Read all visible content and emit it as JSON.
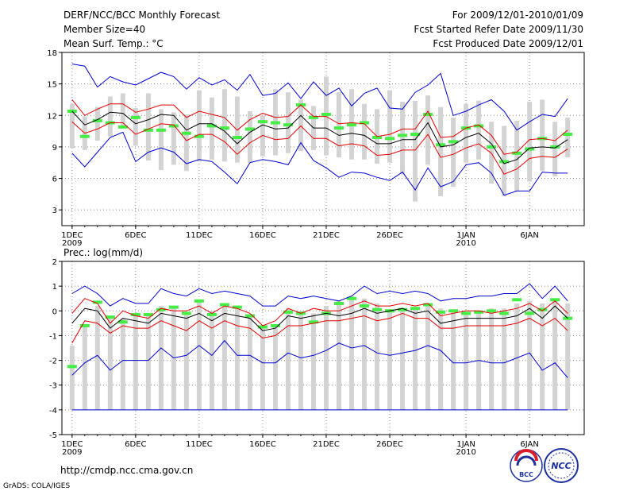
{
  "header": {
    "title": "DERF/NCC/BCC Monthly Forecast",
    "member_size": "Member Size=40",
    "variable": "Mean Surf. Temp.: °C",
    "period": "For 2009/12/01-2010/01/09",
    "started": "Fcst Started Refer Date 2009/11/30",
    "produced": "Fcst Produced Date 2009/12/01"
  },
  "footer": {
    "url": "http://cmdp.ncc.cma.gov.cn",
    "credit": "GrADS: COLA/IGES",
    "logo_bcc": "BCC",
    "logo_ncc": "NCC"
  },
  "colors": {
    "envelope": "#0000cc",
    "spread": "#e00000",
    "mean": "#000000",
    "box": "#d3d3d3",
    "observed": "#44ee44",
    "grid": "#888888"
  },
  "chart_data": [
    {
      "type": "line",
      "title": "Mean Surf. Temp.: °C",
      "ylim": [
        1.5,
        18
      ],
      "yticks": [
        3,
        6,
        9,
        12,
        15,
        18
      ],
      "x_tick_labels": [
        {
          "day": 1,
          "label": "1DEC",
          "sub": "2009"
        },
        {
          "day": 6,
          "label": "6DEC",
          "sub": ""
        },
        {
          "day": 11,
          "label": "11DEC",
          "sub": ""
        },
        {
          "day": 16,
          "label": "16DEC",
          "sub": ""
        },
        {
          "day": 21,
          "label": "21DEC",
          "sub": ""
        },
        {
          "day": 26,
          "label": "26DEC",
          "sub": ""
        },
        {
          "day": 32,
          "label": "1JAN",
          "sub": "2010"
        },
        {
          "day": 37,
          "label": "6JAN",
          "sub": ""
        }
      ],
      "days": [
        1,
        2,
        3,
        4,
        5,
        6,
        7,
        8,
        9,
        10,
        11,
        12,
        13,
        14,
        15,
        16,
        17,
        18,
        19,
        20,
        21,
        22,
        23,
        24,
        25,
        26,
        27,
        28,
        29,
        30,
        31,
        32,
        33,
        34,
        35,
        36,
        37,
        38,
        39,
        40
      ],
      "series": [
        {
          "name": "max",
          "values": [
            16.9,
            16.7,
            14.7,
            15.7,
            15.2,
            14.9,
            15.5,
            16.1,
            15.7,
            14.5,
            15.6,
            14.9,
            15.4,
            14.4,
            15.9,
            13.9,
            14.1,
            15.1,
            13.6,
            15.2,
            13.9,
            14.6,
            12.9,
            14.1,
            14.6,
            12.7,
            12.6,
            14.2,
            14.9,
            16.0,
            12.0,
            12.4,
            13.0,
            13.5,
            12.4,
            10.6,
            11.4,
            12.1,
            11.9,
            13.6
          ]
        },
        {
          "name": "upper",
          "values": [
            13.5,
            12.0,
            12.6,
            13.1,
            13.1,
            12.3,
            12.6,
            13.0,
            13.0,
            11.8,
            12.4,
            12.1,
            11.8,
            10.6,
            11.6,
            12.2,
            11.8,
            11.9,
            13.0,
            11.9,
            11.9,
            11.2,
            11.3,
            11.2,
            10.0,
            10.2,
            10.7,
            10.7,
            12.4,
            9.9,
            10.0,
            10.8,
            11.1,
            10.1,
            8.3,
            8.5,
            9.7,
            9.8,
            9.6,
            10.6
          ]
        },
        {
          "name": "mean",
          "values": [
            12.4,
            11.1,
            11.6,
            12.3,
            12.2,
            11.2,
            11.6,
            12.1,
            12.0,
            10.6,
            11.2,
            11.2,
            10.5,
            9.3,
            10.4,
            11.1,
            10.7,
            10.8,
            12.0,
            10.8,
            10.8,
            10.1,
            10.3,
            10.1,
            9.3,
            9.3,
            9.7,
            9.7,
            11.3,
            9.0,
            9.2,
            9.9,
            10.3,
            9.3,
            7.4,
            7.8,
            8.9,
            9.0,
            8.9,
            9.7
          ]
        },
        {
          "name": "lower",
          "values": [
            11.4,
            10.3,
            10.7,
            11.3,
            11.3,
            10.2,
            10.7,
            11.2,
            11.1,
            9.6,
            10.2,
            10.2,
            9.5,
            8.3,
            9.4,
            10.1,
            9.7,
            9.8,
            11.0,
            9.8,
            9.8,
            9.1,
            9.3,
            9.1,
            8.2,
            8.3,
            8.7,
            8.7,
            10.2,
            8.0,
            8.3,
            8.9,
            9.3,
            8.4,
            6.4,
            6.9,
            7.9,
            8.1,
            8.0,
            8.8
          ]
        },
        {
          "name": "min",
          "values": [
            8.4,
            7.1,
            8.5,
            9.9,
            10.4,
            7.6,
            8.5,
            8.9,
            8.5,
            7.4,
            7.8,
            7.6,
            6.6,
            5.5,
            7.5,
            7.8,
            7.6,
            7.3,
            9.4,
            7.7,
            7.0,
            6.1,
            6.6,
            6.5,
            6.1,
            5.8,
            6.6,
            4.9,
            7.0,
            5.2,
            5.7,
            7.3,
            7.5,
            6.5,
            4.4,
            4.8,
            4.8,
            6.6,
            6.5,
            6.5
          ]
        }
      ],
      "boxes": {
        "low": [
          8.9,
          8.7,
          9.6,
          10.0,
          10.9,
          9.1,
          7.7,
          6.8,
          7.3,
          6.7,
          7.6,
          7.8,
          7.6,
          7.5,
          7.5,
          8.1,
          8.2,
          8.4,
          8.6,
          8.7,
          8.2,
          8.0,
          7.8,
          7.8,
          7.4,
          7.5,
          6.4,
          3.8,
          7.3,
          4.3,
          5.2,
          7.5,
          7.8,
          5.5,
          4.3,
          4.8,
          5.7,
          6.7,
          6.2,
          8.0
        ],
        "high": [
          13.1,
          11.9,
          12.8,
          13.8,
          14.1,
          12.7,
          14.1,
          12.6,
          12.3,
          12.1,
          14.4,
          13.7,
          14.5,
          13.8,
          12.4,
          12.0,
          14.5,
          14.2,
          13.5,
          12.9,
          15.7,
          14.2,
          14.5,
          13.1,
          12.6,
          14.4,
          13.3,
          13.4,
          13.9,
          12.8,
          11.8,
          13.1,
          13.4,
          11.4,
          11.0,
          11.5,
          13.3,
          13.5,
          11.4,
          11.8
        ]
      },
      "observed": [
        12.4,
        10.0,
        11.5,
        11.3,
        10.9,
        11.8,
        10.6,
        10.6,
        11.0,
        10.3,
        10.0,
        11.0,
        10.8,
        9.9,
        10.7,
        11.4,
        11.3,
        11.1,
        13.0,
        11.8,
        12.1,
        10.8,
        11.1,
        11.3,
        9.9,
        9.8,
        10.1,
        10.2,
        12.1,
        9.2,
        9.5,
        10.8,
        11.0,
        9.0,
        7.6,
        8.4,
        8.8,
        9.8,
        9.0,
        10.2
      ]
    },
    {
      "type": "line",
      "title": "Prec.: log(mm/d)",
      "ylim": [
        -5,
        2
      ],
      "yticks": [
        -5,
        -4,
        -3,
        -2,
        -1,
        0,
        1,
        2
      ],
      "x_tick_labels": [
        {
          "day": 1,
          "label": "1DEC",
          "sub": "2009"
        },
        {
          "day": 6,
          "label": "6DEC",
          "sub": ""
        },
        {
          "day": 11,
          "label": "11DEC",
          "sub": ""
        },
        {
          "day": 16,
          "label": "16DEC",
          "sub": ""
        },
        {
          "day": 21,
          "label": "21DEC",
          "sub": ""
        },
        {
          "day": 26,
          "label": "26DEC",
          "sub": ""
        },
        {
          "day": 32,
          "label": "1JAN",
          "sub": "2010"
        },
        {
          "day": 37,
          "label": "6JAN",
          "sub": ""
        }
      ],
      "days": [
        1,
        2,
        3,
        4,
        5,
        6,
        7,
        8,
        9,
        10,
        11,
        12,
        13,
        14,
        15,
        16,
        17,
        18,
        19,
        20,
        21,
        22,
        23,
        24,
        25,
        26,
        27,
        28,
        29,
        30,
        31,
        32,
        33,
        34,
        35,
        36,
        37,
        38,
        39,
        40
      ],
      "series": [
        {
          "name": "max",
          "values": [
            0.7,
            1.0,
            0.7,
            0.2,
            0.5,
            0.3,
            0.3,
            0.9,
            0.7,
            0.6,
            0.9,
            0.7,
            0.8,
            0.7,
            0.6,
            0.2,
            0.2,
            0.6,
            0.5,
            0.6,
            0.5,
            0.4,
            0.6,
            1.0,
            0.7,
            0.8,
            0.7,
            0.8,
            0.7,
            0.4,
            0.5,
            0.5,
            0.6,
            0.6,
            0.7,
            0.7,
            1.1,
            0.5,
            1.0,
            0.4
          ]
        },
        {
          "name": "upper",
          "values": [
            -0.1,
            0.5,
            0.3,
            -0.5,
            0.0,
            -0.2,
            -0.3,
            0.1,
            0.0,
            0.0,
            0.2,
            -0.1,
            0.2,
            0.1,
            -0.1,
            -0.6,
            -0.4,
            0.1,
            -0.1,
            0.1,
            0.0,
            0.0,
            0.2,
            0.4,
            0.2,
            0.2,
            0.3,
            0.2,
            0.3,
            -0.2,
            -0.1,
            0.0,
            0.0,
            -0.1,
            0.0,
            0.1,
            0.3,
            0.0,
            0.4,
            -0.1
          ]
        },
        {
          "name": "mean",
          "values": [
            -0.5,
            0.1,
            0.0,
            -0.7,
            -0.3,
            -0.4,
            -0.5,
            -0.1,
            -0.2,
            -0.3,
            -0.1,
            -0.4,
            -0.1,
            -0.2,
            -0.3,
            -0.8,
            -0.7,
            -0.2,
            -0.3,
            -0.2,
            -0.1,
            -0.2,
            -0.1,
            0.1,
            -0.1,
            0.0,
            0.1,
            -0.1,
            0.0,
            -0.5,
            -0.4,
            -0.3,
            -0.3,
            -0.3,
            -0.3,
            -0.2,
            0.1,
            -0.3,
            0.2,
            -0.3
          ]
        },
        {
          "name": "lower",
          "values": [
            -1.3,
            -0.4,
            -0.5,
            -0.9,
            -0.6,
            -0.7,
            -0.7,
            -0.4,
            -0.6,
            -0.8,
            -0.4,
            -0.7,
            -0.4,
            -0.6,
            -0.7,
            -1.1,
            -1.0,
            -0.6,
            -0.6,
            -0.5,
            -0.4,
            -0.4,
            -0.3,
            -0.2,
            -0.4,
            -0.3,
            -0.1,
            -0.3,
            -0.3,
            -0.7,
            -0.7,
            -0.6,
            -0.6,
            -0.6,
            -0.6,
            -0.5,
            -0.3,
            -0.6,
            -0.3,
            -0.8
          ]
        },
        {
          "name": "min",
          "values": [
            -2.6,
            -2.1,
            -1.8,
            -2.4,
            -2.0,
            -2.0,
            -2.0,
            -1.5,
            -1.9,
            -1.8,
            -1.4,
            -1.8,
            -1.2,
            -1.8,
            -1.8,
            -2.1,
            -2.1,
            -1.7,
            -1.9,
            -1.8,
            -1.6,
            -1.3,
            -1.5,
            -1.4,
            -1.7,
            -1.8,
            -1.7,
            -1.6,
            -1.4,
            -1.6,
            -2.1,
            -2.1,
            -2.0,
            -2.1,
            -2.1,
            -1.9,
            -1.7,
            -2.4,
            -2.1,
            -2.7
          ]
        }
      ],
      "boxes": {
        "low": [
          -4.0,
          -4.0,
          -4.0,
          -4.0,
          -4.0,
          -4.0,
          -4.0,
          -4.0,
          -4.0,
          -4.0,
          -4.0,
          -4.0,
          -4.0,
          -4.0,
          -4.0,
          -4.0,
          -4.0,
          -4.0,
          -4.0,
          -4.0,
          -4.0,
          -4.0,
          -4.0,
          -4.0,
          -4.0,
          -4.0,
          -4.0,
          -4.0,
          -4.0,
          -4.0,
          -4.0,
          -4.0,
          -4.0,
          -4.0,
          -4.0,
          -4.0,
          -4.0,
          -4.0,
          -4.0,
          -4.0
        ],
        "high": [
          -1.4,
          -0.6,
          0.2,
          -0.2,
          -0.3,
          -0.1,
          -0.1,
          0.2,
          0.2,
          -0.1,
          0.4,
          0.0,
          0.3,
          0.2,
          -0.2,
          -0.6,
          -0.6,
          0.1,
          0.0,
          -0.1,
          0.2,
          0.4,
          0.6,
          0.5,
          0.3,
          0.0,
          0.0,
          0.1,
          0.2,
          0.1,
          0.0,
          -0.1,
          0.0,
          0.1,
          0.1,
          0.3,
          0.4,
          0.3,
          0.5,
          0.3
        ]
      },
      "observed": [
        -2.25,
        -0.6,
        0.35,
        -0.25,
        -0.45,
        -0.15,
        -0.15,
        0.05,
        0.15,
        -0.1,
        0.4,
        -0.15,
        0.25,
        0.15,
        -0.2,
        -0.65,
        -0.6,
        -0.05,
        -0.1,
        -0.45,
        -0.1,
        0.3,
        0.5,
        0.2,
        0.05,
        0.0,
        0.05,
        0.1,
        0.25,
        -0.05,
        0.0,
        -0.1,
        -0.05,
        0.0,
        -0.1,
        0.45,
        -0.1,
        0.05,
        0.45,
        -0.3
      ]
    }
  ]
}
